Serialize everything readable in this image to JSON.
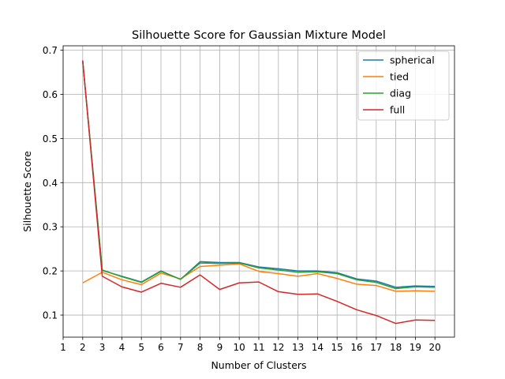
{
  "chart_data": {
    "type": "line",
    "title": "Silhouette Score for Gaussian Mixture Model",
    "xlabel": "Number of Clusters",
    "ylabel": "Silhouette Score",
    "xlim": [
      1,
      21
    ],
    "ylim": [
      0.05,
      0.71
    ],
    "xticks": [
      1,
      2,
      3,
      4,
      5,
      6,
      7,
      8,
      9,
      10,
      11,
      12,
      13,
      14,
      15,
      16,
      17,
      18,
      19,
      20
    ],
    "yticks": [
      0.1,
      0.2,
      0.3,
      0.4,
      0.5,
      0.6,
      0.7
    ],
    "grid": true,
    "legend_position": "top-right",
    "x": [
      2,
      3,
      4,
      5,
      6,
      7,
      8,
      9,
      10,
      11,
      12,
      13,
      14,
      15,
      16,
      17,
      18,
      19,
      20
    ],
    "series": [
      {
        "name": "spherical",
        "color": "#1f77b4",
        "values": [
          0.675,
          0.201,
          0.188,
          0.175,
          0.2,
          0.181,
          0.221,
          0.219,
          0.219,
          0.209,
          0.205,
          0.2,
          0.2,
          0.196,
          0.182,
          0.177,
          0.163,
          0.166,
          0.165
        ]
      },
      {
        "name": "tied",
        "color": "#ff7f0e",
        "values": [
          0.173,
          0.197,
          0.18,
          0.169,
          0.195,
          0.182,
          0.21,
          0.213,
          0.216,
          0.199,
          0.194,
          0.188,
          0.194,
          0.183,
          0.17,
          0.167,
          0.154,
          0.155,
          0.154
        ]
      },
      {
        "name": "diag",
        "color": "#2ca02c",
        "values": [
          0.675,
          0.202,
          0.187,
          0.174,
          0.199,
          0.181,
          0.218,
          0.217,
          0.218,
          0.207,
          0.202,
          0.197,
          0.198,
          0.194,
          0.18,
          0.174,
          0.16,
          0.164,
          0.163
        ]
      },
      {
        "name": "full",
        "color": "#d62728",
        "values": [
          0.677,
          0.188,
          0.164,
          0.152,
          0.172,
          0.163,
          0.191,
          0.158,
          0.173,
          0.175,
          0.153,
          0.147,
          0.148,
          0.131,
          0.112,
          0.099,
          0.081,
          0.089,
          0.088
        ]
      }
    ]
  }
}
